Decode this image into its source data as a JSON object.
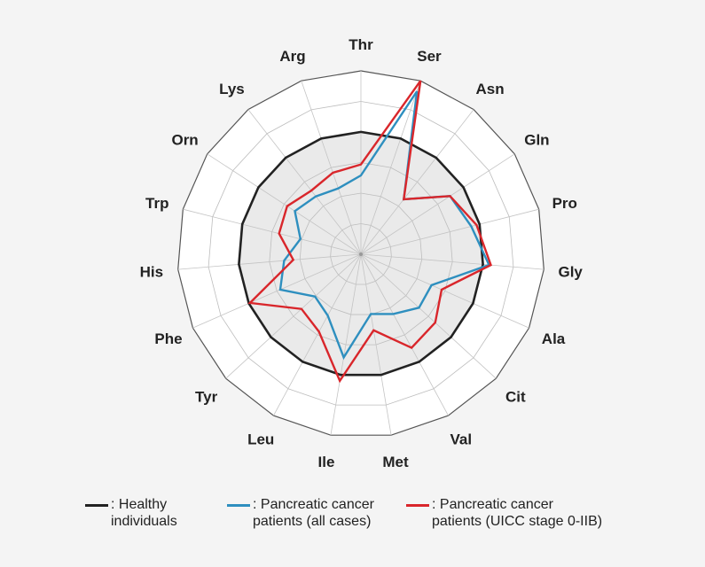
{
  "chart_data": {
    "type": "radar",
    "title": "",
    "axes": [
      "Thr",
      "Ser",
      "Asn",
      "Gln",
      "Pro",
      "Gly",
      "Ala",
      "Cit",
      "Val",
      "Met",
      "Ile",
      "Leu",
      "Tyr",
      "Phe",
      "His",
      "Trp",
      "Orn",
      "Lys",
      "Arg"
    ],
    "rlim": [
      0,
      1
    ],
    "rings": 6,
    "grid": true,
    "series": [
      {
        "name": "Healthy individuals",
        "legend_label": ": Healthy\nindividuals",
        "color": "#222222",
        "values": [
          0.667,
          0.667,
          0.667,
          0.667,
          0.667,
          0.667,
          0.667,
          0.667,
          0.667,
          0.667,
          0.667,
          0.667,
          0.667,
          0.667,
          0.667,
          0.667,
          0.667,
          0.667,
          0.667
        ]
      },
      {
        "name": "Pancreatic cancer patients (all cases)",
        "legend_label": ": Pancreatic cancer\npatients (all cases)",
        "color": "#2e8fbf",
        "values": [
          0.43,
          0.94,
          0.38,
          0.58,
          0.62,
          0.7,
          0.42,
          0.43,
          0.37,
          0.33,
          0.57,
          0.38,
          0.34,
          0.48,
          0.42,
          0.34,
          0.43,
          0.4,
          0.38
        ]
      },
      {
        "name": "Pancreatic cancer patients (UICC stage 0-IIB)",
        "legend_label": ": Pancreatic cancer\npatients (UICC stage 0-IIB)",
        "color": "#d9262b",
        "values": [
          0.49,
          1.0,
          0.38,
          0.58,
          0.65,
          0.71,
          0.48,
          0.55,
          0.58,
          0.42,
          0.7,
          0.48,
          0.44,
          0.66,
          0.37,
          0.46,
          0.48,
          0.44,
          0.47
        ]
      }
    ]
  }
}
